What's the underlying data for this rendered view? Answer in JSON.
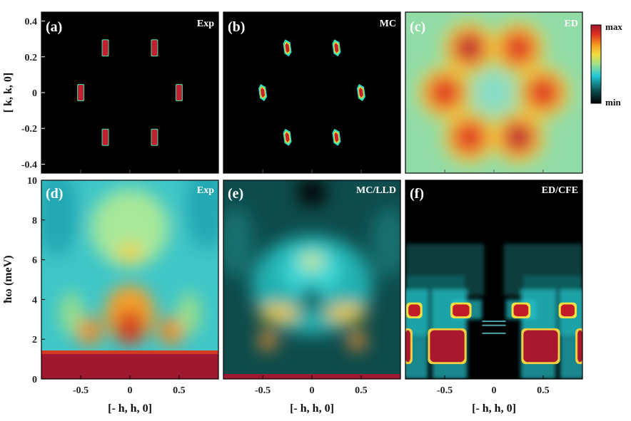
{
  "chart_data": {
    "type": "heatmap",
    "colormap": "jet",
    "colorbar": {
      "max_label": "max",
      "min_label": "min"
    },
    "top_row": {
      "xlim": [
        -0.9,
        0.9
      ],
      "ylim": [
        -0.45,
        0.45
      ],
      "ylabel": "[ k,  k, 0]",
      "yticks": [
        "0.4",
        "0.2",
        "0",
        "-0.2",
        "-0.4"
      ],
      "yticks_values": [
        0.4,
        0.2,
        0,
        -0.2,
        -0.4
      ]
    },
    "bottom_row": {
      "xlim": [
        -0.9,
        0.9
      ],
      "ylim": [
        0,
        10
      ],
      "ylabel": "ħω (meV)",
      "xlabel": "[- h,  h, 0]",
      "xticks": [
        "-0.5",
        "0",
        "0.5"
      ],
      "xticks_values": [
        -0.5,
        0,
        0.5
      ],
      "yticks": [
        "10",
        "8",
        "6",
        "4",
        "2",
        "0"
      ],
      "yticks_values": [
        10,
        8,
        6,
        4,
        2,
        0
      ]
    },
    "panels": [
      {
        "id": "a",
        "label": "(a)",
        "tag": "Exp",
        "kind": "diffraction",
        "peaks": [
          {
            "x": -0.25,
            "y": 0.25
          },
          {
            "x": 0.25,
            "y": 0.25
          },
          {
            "x": -0.5,
            "y": 0
          },
          {
            "x": 0.5,
            "y": 0
          },
          {
            "x": -0.25,
            "y": -0.25
          },
          {
            "x": 0.25,
            "y": -0.25
          }
        ]
      },
      {
        "id": "b",
        "label": "(b)",
        "tag": "MC",
        "kind": "diffraction",
        "peaks": [
          {
            "x": -0.25,
            "y": 0.25
          },
          {
            "x": 0.25,
            "y": 0.25
          },
          {
            "x": -0.5,
            "y": 0
          },
          {
            "x": 0.5,
            "y": 0
          },
          {
            "x": -0.25,
            "y": -0.25
          },
          {
            "x": 0.25,
            "y": -0.25
          }
        ]
      },
      {
        "id": "c",
        "label": "(c)",
        "tag": "ED",
        "kind": "diffuse",
        "peaks": [
          {
            "x": -0.25,
            "y": 0.25
          },
          {
            "x": 0.25,
            "y": 0.25
          },
          {
            "x": -0.5,
            "y": 0
          },
          {
            "x": 0.5,
            "y": 0
          },
          {
            "x": -0.25,
            "y": -0.25
          },
          {
            "x": 0.25,
            "y": -0.25
          }
        ]
      },
      {
        "id": "d",
        "label": "(d)",
        "tag": "Exp",
        "kind": "spectrum"
      },
      {
        "id": "e",
        "label": "(e)",
        "tag": "MC/LLD",
        "kind": "spectrum"
      },
      {
        "id": "f",
        "label": "(f)",
        "tag": "ED/CFE",
        "kind": "spectrum"
      }
    ]
  }
}
